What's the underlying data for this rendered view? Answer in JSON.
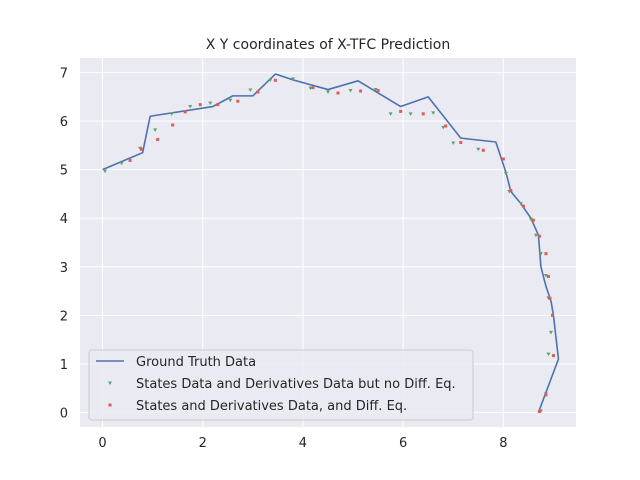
{
  "chart_data": {
    "type": "line",
    "title": "X Y coordinates of X-TFC Prediction",
    "xlabel": "",
    "ylabel": "",
    "xlim": [
      -0.45,
      9.45
    ],
    "ylim": [
      -0.3,
      7.3
    ],
    "xticks": [
      0,
      2,
      4,
      6,
      8
    ],
    "yticks": [
      0,
      1,
      2,
      3,
      4,
      5,
      6,
      7
    ],
    "grid": true,
    "legend_position": "lower-left",
    "colors": {
      "background": "#eaeaf2",
      "grid": "#ffffff",
      "line": "#4c72b0",
      "green": "#55a868",
      "red": "#e05a5a"
    },
    "series": [
      {
        "name": "Ground Truth Data",
        "kind": "line",
        "x": [
          0.0,
          0.8,
          0.95,
          2.2,
          2.6,
          3.0,
          3.45,
          3.8,
          4.5,
          5.1,
          5.95,
          6.5,
          7.15,
          7.85,
          8.05,
          8.15,
          8.35,
          8.55,
          8.7,
          8.75,
          8.85,
          8.95,
          9.0,
          9.1,
          8.7
        ],
        "y": [
          5.0,
          5.35,
          6.1,
          6.3,
          6.52,
          6.52,
          6.97,
          6.85,
          6.65,
          6.83,
          6.3,
          6.5,
          5.65,
          5.57,
          4.95,
          4.55,
          4.3,
          4.0,
          3.65,
          3.0,
          2.6,
          2.3,
          2.0,
          1.1,
          0.0
        ]
      },
      {
        "name": "States Data and Derivatives Data but no Diff. Eq.",
        "kind": "scatter",
        "marker": "triangle-down",
        "x": [
          0.05,
          0.38,
          0.75,
          1.05,
          1.38,
          1.75,
          2.15,
          2.55,
          2.95,
          3.35,
          3.8,
          4.15,
          4.5,
          4.95,
          5.45,
          5.75,
          6.15,
          6.6,
          6.8,
          7.0,
          7.5,
          8.05,
          8.12,
          8.35,
          8.55,
          8.65,
          8.75,
          8.85,
          8.9,
          8.95,
          8.9,
          8.85,
          8.75
        ],
        "y": [
          4.97,
          5.13,
          5.44,
          5.82,
          6.15,
          6.3,
          6.37,
          6.43,
          6.64,
          6.85,
          6.87,
          6.68,
          6.6,
          6.63,
          6.65,
          6.15,
          6.15,
          6.17,
          5.87,
          5.55,
          5.42,
          4.92,
          4.55,
          4.3,
          3.98,
          3.65,
          3.27,
          2.82,
          2.36,
          1.65,
          1.2,
          0.38,
          0.03
        ]
      },
      {
        "name": "States and Derivatives Data, and Diff. Eq.",
        "kind": "scatter",
        "marker": "square",
        "x": [
          0.55,
          0.78,
          1.1,
          1.4,
          1.65,
          1.95,
          2.3,
          2.7,
          3.1,
          3.45,
          4.2,
          4.7,
          5.15,
          5.5,
          5.95,
          6.4,
          6.85,
          7.15,
          7.6,
          8.0,
          8.15,
          8.4,
          8.6,
          8.72,
          8.85,
          8.9,
          8.93,
          8.98,
          9.0,
          8.85,
          8.72
        ],
        "y": [
          5.19,
          5.42,
          5.62,
          5.92,
          6.19,
          6.34,
          6.34,
          6.41,
          6.6,
          6.84,
          6.69,
          6.58,
          6.62,
          6.63,
          6.2,
          6.15,
          5.9,
          5.56,
          5.4,
          5.22,
          4.57,
          4.25,
          3.96,
          3.63,
          3.27,
          2.8,
          2.35,
          2.0,
          1.17,
          0.36,
          0.02
        ]
      }
    ]
  }
}
